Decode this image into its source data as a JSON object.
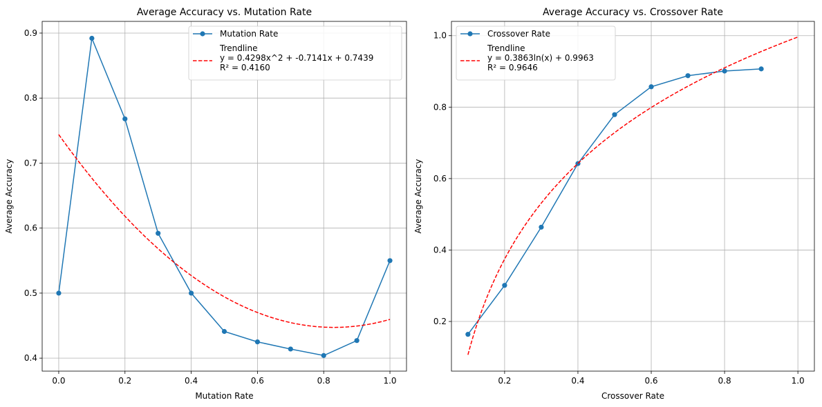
{
  "chart_data": [
    {
      "type": "line",
      "title": "Average Accuracy vs. Mutation Rate",
      "xlabel": "Mutation Rate",
      "ylabel": "Average Accuracy",
      "xlim": [
        -0.05,
        1.05
      ],
      "ylim": [
        0.38,
        0.918
      ],
      "xticks": [
        0.0,
        0.2,
        0.4,
        0.6,
        0.8,
        1.0
      ],
      "xtick_labels": [
        "0.0",
        "0.2",
        "0.4",
        "0.6",
        "0.8",
        "1.0"
      ],
      "yticks": [
        0.4,
        0.5,
        0.6,
        0.7,
        0.8,
        0.9
      ],
      "ytick_labels": [
        "0.4",
        "0.5",
        "0.6",
        "0.7",
        "0.8",
        "0.9"
      ],
      "grid": true,
      "legend_position": "top-right",
      "series": [
        {
          "name": "Mutation Rate",
          "style": "line-marker",
          "color": "#1f77b4",
          "x": [
            0.0,
            0.1,
            0.2,
            0.3,
            0.4,
            0.5,
            0.6,
            0.7,
            0.8,
            0.9,
            1.0
          ],
          "y": [
            0.5,
            0.892,
            0.768,
            0.592,
            0.5,
            0.441,
            0.425,
            0.414,
            0.404,
            0.427,
            0.55
          ]
        },
        {
          "name": "Trendline",
          "legend_lines": [
            "Trendline",
            "y = 0.4298x^2 + -0.7141x + 0.7439",
            "R² = 0.4160"
          ],
          "style": "dashed",
          "color": "#ff0000",
          "fit": {
            "kind": "poly2",
            "a": 0.4298,
            "b": -0.7141,
            "c": 0.7439
          },
          "x_range": [
            0.0,
            1.0
          ]
        }
      ]
    },
    {
      "type": "line",
      "title": "Average Accuracy vs. Crossover Rate",
      "xlabel": "Crossover Rate",
      "ylabel": "Average Accuracy",
      "xlim": [
        0.055,
        1.045
      ],
      "ylim": [
        0.061,
        1.04
      ],
      "xticks": [
        0.2,
        0.4,
        0.6,
        0.8,
        1.0
      ],
      "xtick_labels": [
        "0.2",
        "0.4",
        "0.6",
        "0.8",
        "1.0"
      ],
      "yticks": [
        0.2,
        0.4,
        0.6,
        0.8,
        1.0
      ],
      "ytick_labels": [
        "0.2",
        "0.4",
        "0.6",
        "0.8",
        "1.0"
      ],
      "grid": true,
      "legend_position": "top-left",
      "series": [
        {
          "name": "Crossover Rate",
          "style": "line-marker",
          "color": "#1f77b4",
          "x": [
            0.1,
            0.2,
            0.3,
            0.4,
            0.5,
            0.6,
            0.7,
            0.8,
            0.9
          ],
          "y": [
            0.164,
            0.301,
            0.464,
            0.642,
            0.779,
            0.857,
            0.888,
            0.901,
            0.907
          ]
        },
        {
          "name": "Trendline",
          "legend_lines": [
            "Trendline",
            "y = 0.3863ln(x) + 0.9963",
            "R² = 0.9646"
          ],
          "style": "dashed",
          "color": "#ff0000",
          "fit": {
            "kind": "log",
            "a": 0.3863,
            "b": 0.9963
          },
          "x_range": [
            0.1,
            1.0
          ]
        }
      ]
    }
  ]
}
